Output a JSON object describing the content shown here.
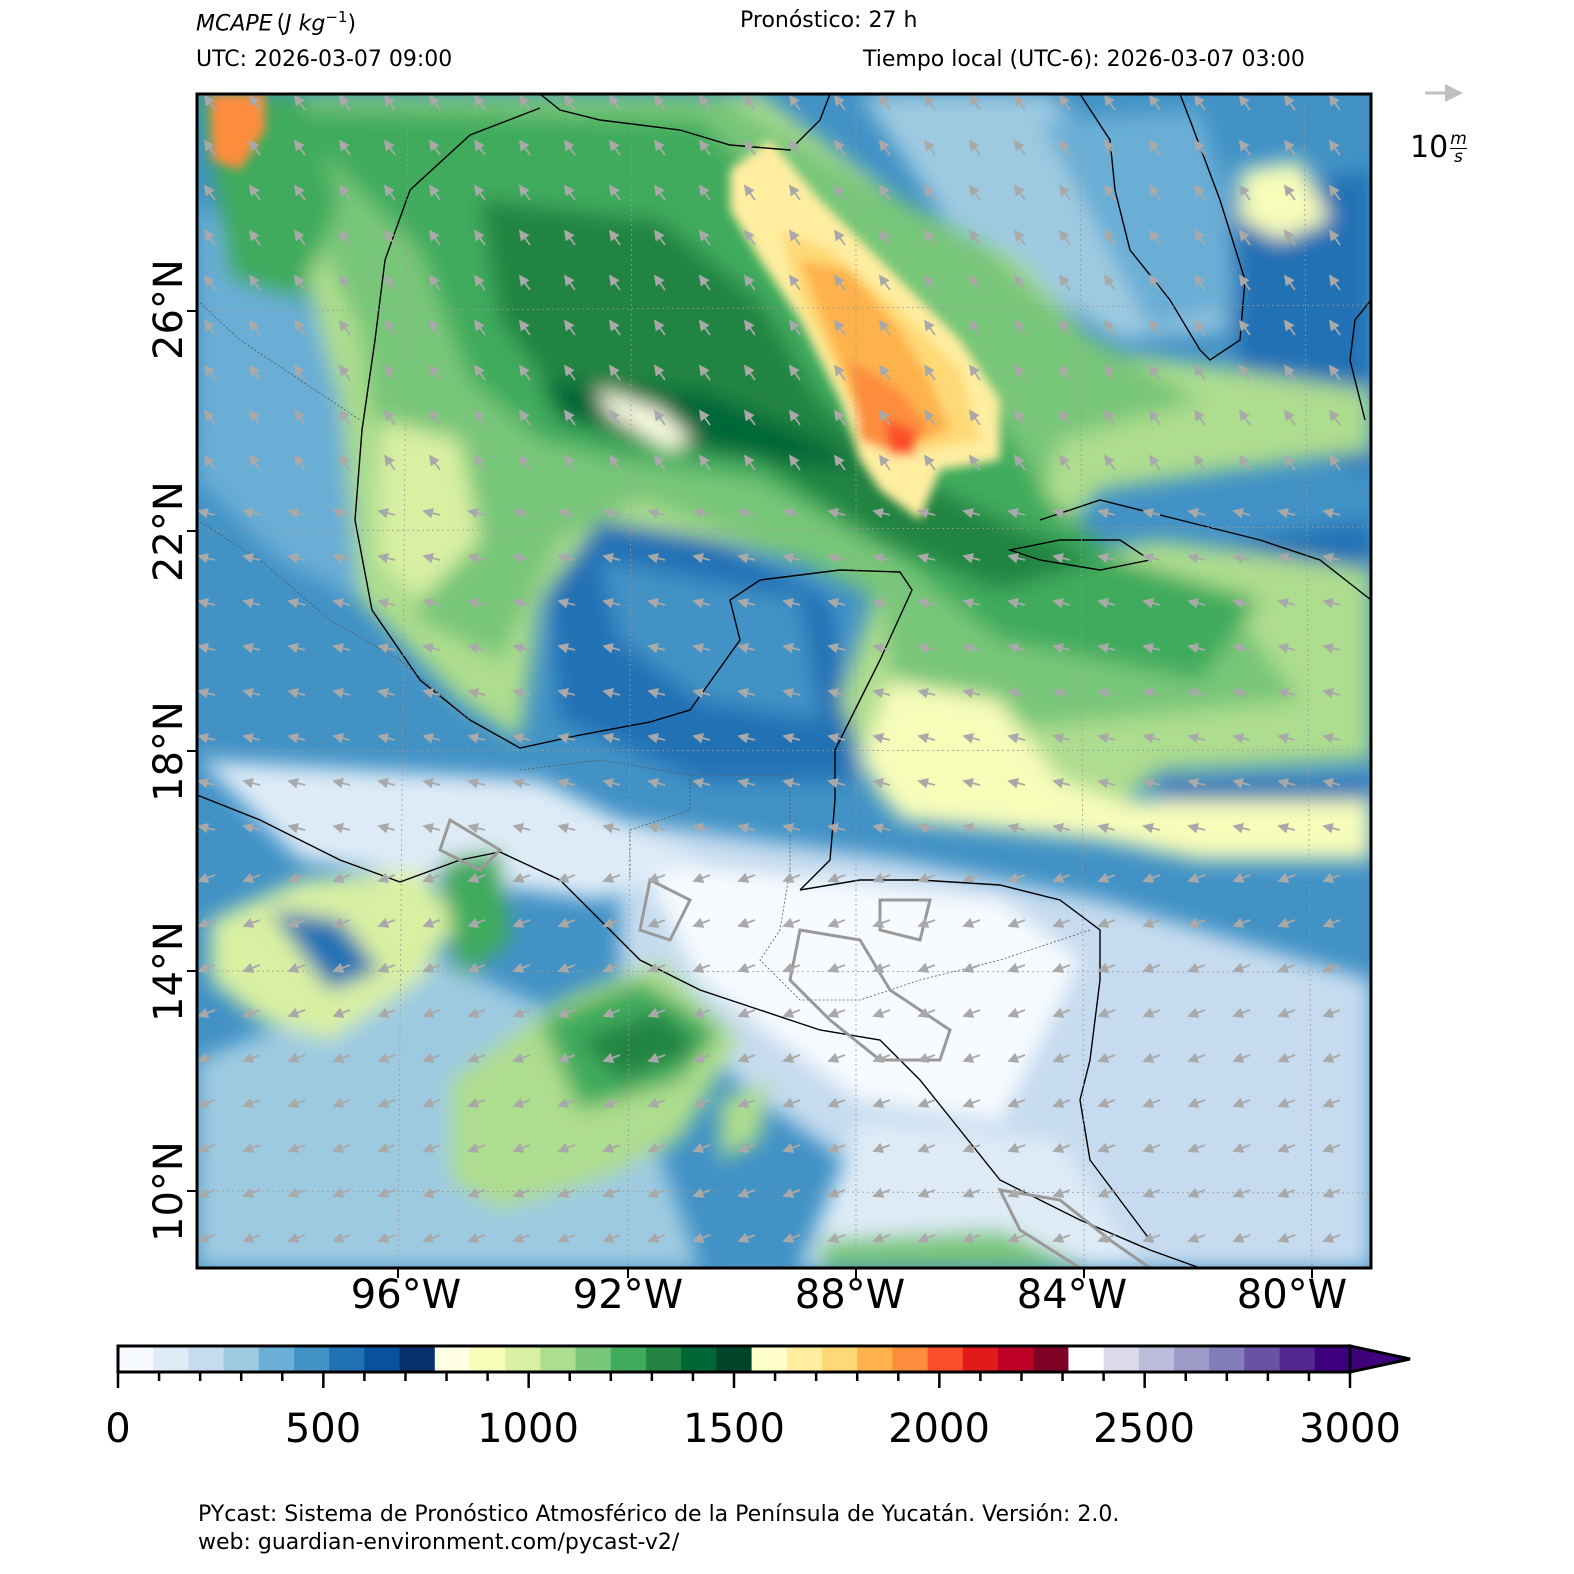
{
  "header": {
    "variable": "MCAPE",
    "units_base": "J kg",
    "units_exp": "−1",
    "forecast": "Pronóstico: 27 h",
    "utc": "UTC:  2026-03-07 09:00",
    "local": "Tiempo local (UTC-6): 2026-03-07 03:00"
  },
  "wind_key": {
    "label_prefix": "10",
    "unit_num": "m",
    "unit_den": "s"
  },
  "axes": {
    "lat_labels": [
      "26°N",
      "22°N",
      "18°N",
      "14°N",
      "10°N"
    ],
    "lon_labels": [
      "96°W",
      "92°W",
      "88°W",
      "84°W",
      "80°W"
    ]
  },
  "colorbar": {
    "ticks": [
      "0",
      "500",
      "1000",
      "1500",
      "2000",
      "2500",
      "3000"
    ],
    "range": [
      0,
      3000
    ],
    "step": 100,
    "extend": "max",
    "colors": [
      "#f7fbff",
      "#deebf7",
      "#c6dbef",
      "#9ecae1",
      "#6baed6",
      "#4292c6",
      "#2171b5",
      "#08519c",
      "#08306b",
      "#ffffe5",
      "#f7fcb9",
      "#d9f0a3",
      "#addd8e",
      "#78c679",
      "#41ab5d",
      "#238443",
      "#006837",
      "#004529",
      "#ffffcc",
      "#ffeda0",
      "#fed976",
      "#feb24c",
      "#fd8d3c",
      "#fc4e2a",
      "#e31a1c",
      "#bd0026",
      "#800026",
      "#ffffff",
      "#dadaeb",
      "#bcbddc",
      "#9e9ac8",
      "#807dba",
      "#6a51a3",
      "#54278f",
      "#3f007d"
    ]
  },
  "footer": {
    "line1": "PYcast: Sistema de Pronóstico Atmosférico de la Península de Yucatán. Versión: 2.0.",
    "line2": "web: guardian-environment.com/pycast-v2/"
  }
}
